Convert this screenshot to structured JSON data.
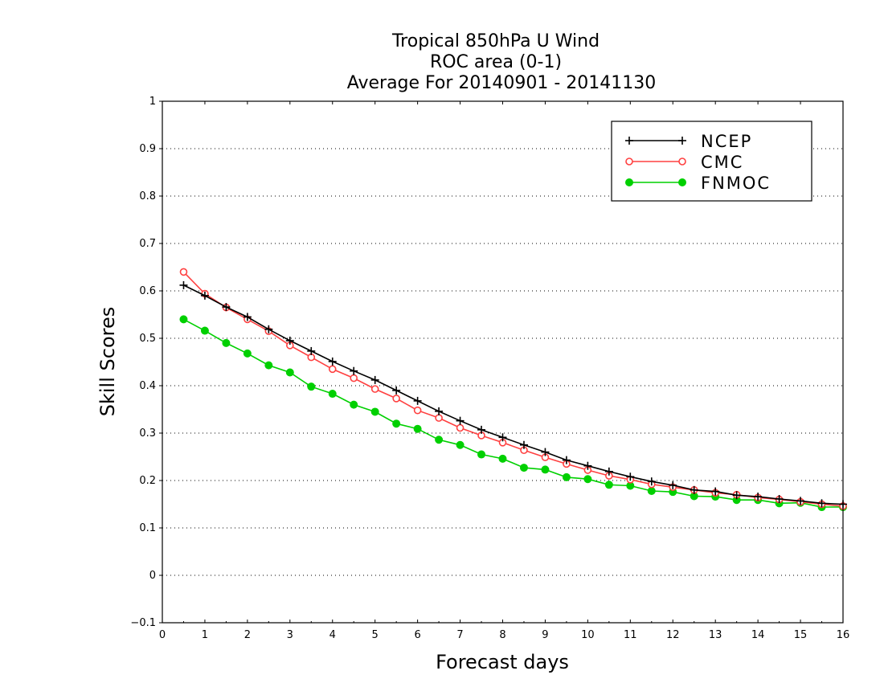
{
  "chart_data": {
    "type": "line",
    "title_lines": [
      "Tropical 850hPa U Wind",
      "ROC area (0-1)",
      "Average For 20140901 - 20141130"
    ],
    "xlabel": "Forecast days",
    "ylabel": "Skill Scores",
    "xlim": [
      0,
      16
    ],
    "ylim": [
      -0.1,
      1
    ],
    "x_ticks": [
      "0",
      "1",
      "2",
      "3",
      "4",
      "5",
      "6",
      "7",
      "8",
      "9",
      "10",
      "11",
      "12",
      "13",
      "14",
      "15",
      "16"
    ],
    "y_ticks": [
      "−0.1",
      "0",
      "0.1",
      "0.2",
      "0.3",
      "0.4",
      "0.5",
      "0.6",
      "0.7",
      "0.8",
      "0.9",
      "1"
    ],
    "grid": "horizontal dotted",
    "legend_position": "top-right",
    "x": [
      0.5,
      1,
      1.5,
      2,
      2.5,
      3,
      3.5,
      4,
      4.5,
      5,
      5.5,
      6,
      6.5,
      7,
      7.5,
      8,
      8.5,
      9,
      9.5,
      10,
      10.5,
      11,
      11.5,
      12,
      12.5,
      13,
      13.5,
      14,
      14.5,
      15,
      15.5,
      16
    ],
    "series": [
      {
        "name": "NCEP",
        "color": "#000000",
        "marker": "plus",
        "values": [
          0.612,
          0.59,
          0.566,
          0.545,
          0.519,
          0.495,
          0.473,
          0.451,
          0.431,
          0.412,
          0.39,
          0.368,
          0.346,
          0.326,
          0.307,
          0.291,
          0.275,
          0.26,
          0.243,
          0.231,
          0.219,
          0.208,
          0.198,
          0.19,
          0.18,
          0.177,
          0.169,
          0.166,
          0.161,
          0.157,
          0.152,
          0.15
        ]
      },
      {
        "name": "CMC",
        "color": "#ff4040",
        "marker": "open-circle",
        "values": [
          0.64,
          0.594,
          0.565,
          0.54,
          0.515,
          0.485,
          0.46,
          0.435,
          0.416,
          0.393,
          0.373,
          0.348,
          0.332,
          0.311,
          0.295,
          0.28,
          0.264,
          0.249,
          0.235,
          0.222,
          0.21,
          0.202,
          0.192,
          0.186,
          0.18,
          0.174,
          0.17,
          0.164,
          0.16,
          0.155,
          0.15,
          0.146
        ]
      },
      {
        "name": "FNMOC",
        "color": "#00d000",
        "marker": "filled-circle",
        "values": [
          0.54,
          0.516,
          0.49,
          0.468,
          0.443,
          0.428,
          0.398,
          0.383,
          0.36,
          0.345,
          0.32,
          0.309,
          0.286,
          0.275,
          0.255,
          0.246,
          0.227,
          0.223,
          0.207,
          0.203,
          0.191,
          0.189,
          0.178,
          0.176,
          0.167,
          0.166,
          0.159,
          0.159,
          0.152,
          0.153,
          0.144,
          0.144
        ]
      }
    ]
  }
}
